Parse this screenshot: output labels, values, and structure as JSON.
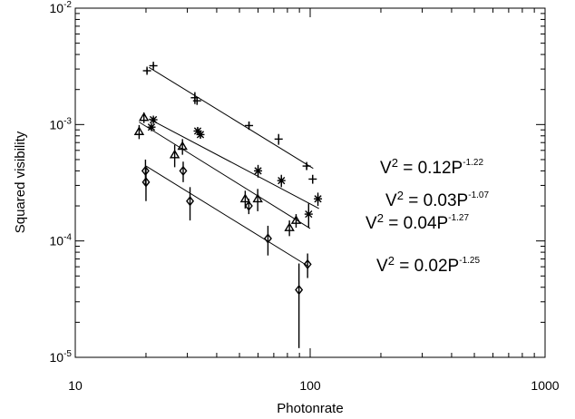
{
  "chart_data": {
    "type": "scatter",
    "xlabel": "Photonrate",
    "ylabel": "Squared visibility",
    "x_scale": "log",
    "y_scale": "log",
    "xlim": [
      10,
      1000
    ],
    "ylim": [
      1e-05,
      0.01
    ],
    "x_ticks": [
      {
        "value": 10,
        "label": "10"
      },
      {
        "value": 100,
        "label": "100"
      },
      {
        "value": 1000,
        "label": "1000"
      }
    ],
    "y_ticks": [
      {
        "value": 1e-05,
        "base": "10",
        "exp": "-5"
      },
      {
        "value": 0.0001,
        "base": "10",
        "exp": "-4"
      },
      {
        "value": 0.001,
        "base": "10",
        "exp": "-3"
      },
      {
        "value": 0.01,
        "base": "10",
        "exp": "-2"
      }
    ],
    "series": [
      {
        "marker": "plus",
        "points": [
          {
            "x": 20.2,
            "y": 0.0029,
            "err": 0.00015
          },
          {
            "x": 21.5,
            "y": 0.0032,
            "err": 0.00015
          },
          {
            "x": 32.3,
            "y": 0.0017,
            "err": 0.0002
          },
          {
            "x": 33.0,
            "y": 0.0016,
            "err": 0.00012
          },
          {
            "x": 54.9,
            "y": 0.00098,
            "err": 8e-05
          },
          {
            "x": 73.4,
            "y": 0.00075,
            "err": 8e-05
          },
          {
            "x": 96.6,
            "y": 0.00044,
            "err": 3e-05
          },
          {
            "x": 102.5,
            "y": 0.00034,
            "err": 3e-05
          }
        ],
        "fit": {
          "x": [
            20.6,
            103.0
          ],
          "y": [
            0.0031,
            0.00042
          ]
        },
        "equation": {
          "main": "V",
          "sq": "2",
          "mid": " = 0.12P",
          "exp": "-1.22"
        }
      },
      {
        "marker": "asterisk",
        "points": [
          {
            "x": 21.1,
            "y": 0.00095,
            "err": 5e-05
          },
          {
            "x": 21.5,
            "y": 0.0011,
            "err": 6e-05
          },
          {
            "x": 33.2,
            "y": 0.00088,
            "err": 6e-05
          },
          {
            "x": 34.1,
            "y": 0.00082,
            "err": 6e-05
          },
          {
            "x": 60.0,
            "y": 0.0004,
            "err": 5e-05
          },
          {
            "x": 75.4,
            "y": 0.00033,
            "err": 4e-05
          },
          {
            "x": 98.5,
            "y": 0.00017,
            "err": 4e-05
          },
          {
            "x": 107.9,
            "y": 0.00023,
            "err": 3e-05
          }
        ],
        "fit": {
          "x": [
            20.6,
            109.0
          ],
          "y": [
            0.00112,
            0.00019
          ]
        },
        "equation": {
          "main": "V",
          "sq": "2",
          "mid": " = 0.03P",
          "exp": "-1.07"
        }
      },
      {
        "marker": "triangle",
        "points": [
          {
            "x": 18.7,
            "y": 0.00087,
            "err": 0.00012
          },
          {
            "x": 19.6,
            "y": 0.00115,
            "err": 0.00012
          },
          {
            "x": 26.5,
            "y": 0.00055,
            "err": 0.00012
          },
          {
            "x": 28.6,
            "y": 0.00065,
            "err": 0.0001
          },
          {
            "x": 52.9,
            "y": 0.00023,
            "err": 4e-05
          },
          {
            "x": 59.8,
            "y": 0.00023,
            "err": 5e-05
          },
          {
            "x": 81.6,
            "y": 0.00013,
            "err": 2e-05
          },
          {
            "x": 87.1,
            "y": 0.00015,
            "err": 2e-05
          }
        ],
        "fit": {
          "x": [
            18.7,
            100.0
          ],
          "y": [
            0.00105,
            0.000128
          ]
        },
        "equation": {
          "main": "V",
          "sq": "2",
          "mid": " = 0.04P",
          "exp": "-1.27"
        }
      },
      {
        "marker": "diamond",
        "points": [
          {
            "x": 19.9,
            "y": 0.0004,
            "err": 0.0001
          },
          {
            "x": 20.0,
            "y": 0.00032,
            "err": 0.0001
          },
          {
            "x": 28.8,
            "y": 0.0004,
            "err": 8e-05
          },
          {
            "x": 30.8,
            "y": 0.00022,
            "err": 7e-05
          },
          {
            "x": 54.8,
            "y": 0.0002,
            "err": 3e-05
          },
          {
            "x": 66.1,
            "y": 0.000105,
            "err": 3e-05
          },
          {
            "x": 89.6,
            "y": 3.8e-05,
            "err": 2.6e-05
          },
          {
            "x": 97.5,
            "y": 6.3e-05,
            "err": 1.5e-05
          }
        ],
        "fit": {
          "x": [
            20.0,
            97.0
          ],
          "y": [
            0.00044,
            6.15e-05
          ]
        },
        "equation": {
          "main": "V",
          "sq": "2",
          "mid": " = 0.02P",
          "exp": "-1.25"
        }
      }
    ],
    "grid": false,
    "legend": "none"
  }
}
